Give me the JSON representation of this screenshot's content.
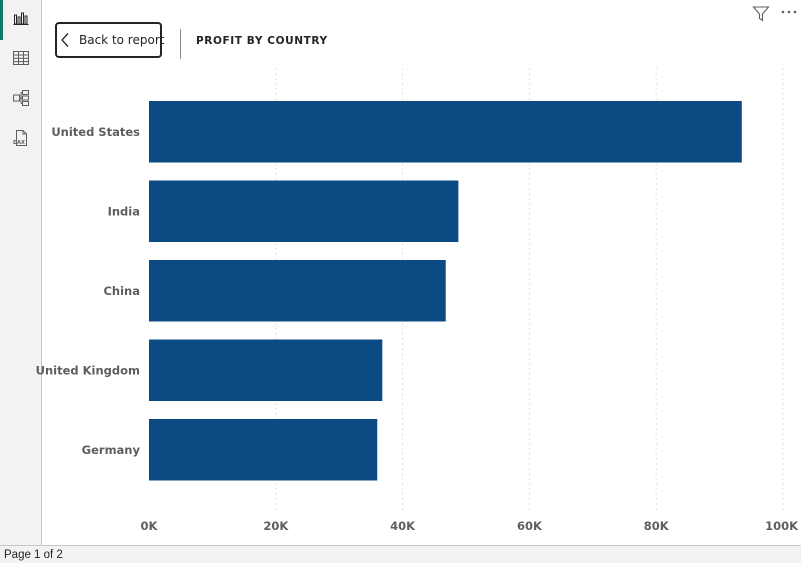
{
  "sidebar": {
    "items": [
      {
        "icon": "report-view-icon",
        "active": true
      },
      {
        "icon": "table-view-icon",
        "active": false
      },
      {
        "icon": "model-view-icon",
        "active": false
      },
      {
        "icon": "dax-query-view-icon",
        "active": false
      }
    ]
  },
  "header": {
    "back_label": "Back to report",
    "title": "PROFIT BY COUNTRY"
  },
  "toolbar": {
    "icons": [
      "filter-icon",
      "more-options-icon"
    ]
  },
  "footer": {
    "page_label": "Page 1 of 2"
  },
  "colors": {
    "bar": "#0b4a82",
    "accent": "#117865",
    "grid": "#e1dfdd"
  },
  "chart_data": {
    "type": "bar",
    "orientation": "horizontal",
    "title": "PROFIT BY COUNTRY",
    "categories": [
      "United States",
      "India",
      "China",
      "United Kingdom",
      "Germany"
    ],
    "values": [
      93500,
      48800,
      46800,
      36800,
      36000
    ],
    "xlim": [
      0,
      100000
    ],
    "xticks": [
      0,
      20000,
      40000,
      60000,
      80000,
      100000
    ],
    "xtick_labels": [
      "0K",
      "20K",
      "40K",
      "60K",
      "80K",
      "100K"
    ],
    "grid": true
  }
}
